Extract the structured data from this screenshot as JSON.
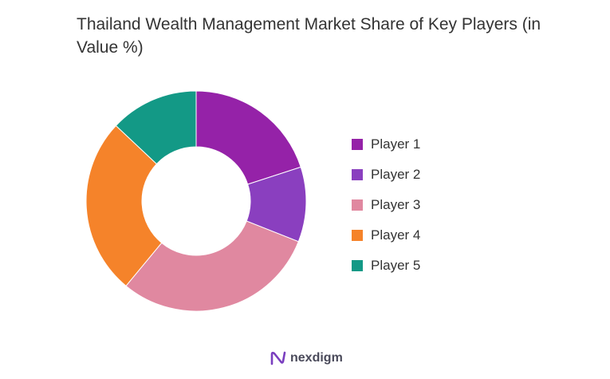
{
  "chart_data": {
    "type": "pie",
    "title": "Thailand Wealth Management Market Share of Key Players (in Value %)",
    "categories": [
      "Player 1",
      "Player 2",
      "Player 3",
      "Player 4",
      "Player 5"
    ],
    "values": [
      20,
      11,
      30,
      26,
      13
    ],
    "colors": [
      "#9522a8",
      "#8a3fbf",
      "#e088a0",
      "#f5832a",
      "#139986"
    ],
    "donut": true,
    "legend": "right"
  },
  "brand": {
    "name": "nexdigm",
    "icon": "nexdigm-logo-icon"
  }
}
